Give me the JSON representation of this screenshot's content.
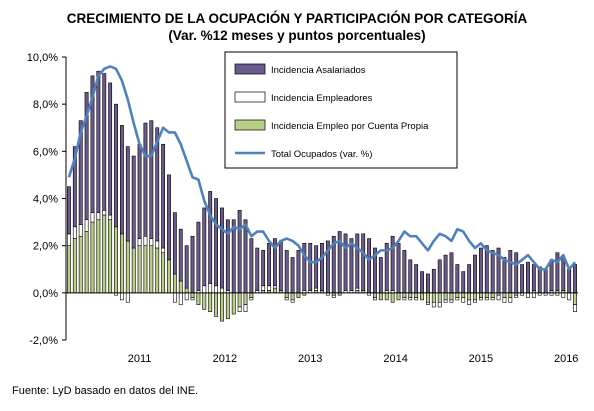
{
  "title": "CRECIMIENTO DE LA OCUPACIÓN Y PARTICIPACIÓN POR CATEGORÍA",
  "subtitle": "(Var. %12 meses  y puntos porcentuales)",
  "source": "Fuente: LyD basado en datos del INE.",
  "colors": {
    "asalariados": "#6a5a8e",
    "empleadores": "#ffffff",
    "cuenta_propia": "#b8cf86",
    "total": "#4f81bd",
    "bar_stroke": "#000000"
  },
  "chart_data": {
    "type": "bar",
    "stacked": true,
    "ylim": [
      -2,
      10
    ],
    "yticks": [
      "-2,0%",
      "0,0%",
      "2,0%",
      "4,0%",
      "6,0%",
      "8,0%",
      "10,0%"
    ],
    "year_labels": [
      "2011",
      "2012",
      "2013",
      "2014",
      "2015",
      "2016"
    ],
    "legend_position": "top-right",
    "grid": false,
    "series": [
      {
        "name": "Incidencia Asalariados",
        "kind": "bar",
        "values": [
          2.0,
          3.4,
          4.4,
          5.4,
          5.8,
          6.0,
          5.8,
          5.6,
          5.2,
          4.6,
          4.0,
          3.9,
          4.0,
          4.8,
          5.0,
          4.8,
          4.4,
          3.6,
          2.6,
          2.2,
          1.8,
          2.4,
          2.9,
          3.3,
          3.9,
          3.7,
          3.4,
          3.0,
          3.1,
          3.5,
          3.1,
          2.3,
          1.8,
          1.5,
          1.8,
          2.0,
          2.1,
          1.8,
          1.5,
          1.8,
          2.0,
          2.0,
          1.8,
          2.0,
          2.2,
          2.4,
          2.6,
          2.4,
          2.2,
          2.3,
          2.4,
          2.3,
          1.9,
          1.5,
          2.0,
          2.3,
          2.1,
          1.8,
          1.4,
          1.2,
          0.9,
          0.8,
          1.0,
          1.4,
          1.6,
          1.7,
          1.2,
          0.9,
          1.2,
          1.6,
          1.9,
          2.0,
          1.8,
          1.9,
          1.5,
          1.8,
          1.7,
          1.2,
          1.3,
          1.1,
          1.1,
          1.0,
          1.3,
          1.6,
          1.4,
          1.0,
          1.2
        ]
      },
      {
        "name": "Incidencia Empleadores",
        "kind": "bar",
        "values": [
          0.5,
          0.5,
          0.5,
          0.5,
          0.4,
          0.3,
          0.2,
          0.2,
          -0.1,
          -0.3,
          -0.4,
          0.0,
          0.3,
          0.4,
          0.3,
          0.3,
          0.2,
          0.0,
          -0.4,
          -0.5,
          -0.3,
          -0.1,
          0.1,
          0.3,
          0.4,
          0.3,
          0.2,
          0.1,
          0.0,
          -0.2,
          -0.3,
          -0.1,
          0.1,
          0.2,
          0.2,
          0.1,
          0.0,
          -0.1,
          -0.1,
          0.0,
          0.1,
          0.1,
          0.1,
          0.0,
          -0.1,
          -0.1,
          0.0,
          0.1,
          0.1,
          0.1,
          0.0,
          -0.1,
          -0.1,
          0.0,
          0.1,
          0.1,
          0.0,
          -0.1,
          -0.1,
          -0.1,
          0.0,
          -0.1,
          -0.2,
          -0.2,
          -0.1,
          -0.1,
          -0.1,
          -0.2,
          -0.2,
          -0.1,
          -0.1,
          -0.1,
          -0.1,
          -0.2,
          -0.2,
          -0.2,
          -0.1,
          -0.1,
          -0.2,
          -0.2,
          -0.1,
          -0.1,
          -0.1,
          -0.1,
          -0.2,
          -0.3,
          -0.3
        ]
      },
      {
        "name": "Incidencia Empleo por Cuenta Propia",
        "kind": "bar",
        "values": [
          2.0,
          2.3,
          2.4,
          2.6,
          3.0,
          3.1,
          3.3,
          3.1,
          2.8,
          2.5,
          2.2,
          1.9,
          2.0,
          2.0,
          2.0,
          1.9,
          1.7,
          1.4,
          0.8,
          0.5,
          0.2,
          -0.2,
          -0.5,
          -0.7,
          -0.8,
          -1.0,
          -1.2,
          -1.1,
          -0.9,
          -0.6,
          -0.5,
          -0.2,
          0.0,
          0.1,
          0.1,
          0.2,
          0.1,
          -0.2,
          -0.3,
          -0.2,
          -0.1,
          0.0,
          0.1,
          0.1,
          0.0,
          -0.1,
          -0.1,
          0.0,
          0.0,
          0.1,
          0.1,
          0.0,
          -0.2,
          -0.3,
          -0.3,
          -0.4,
          -0.3,
          -0.2,
          -0.2,
          -0.2,
          -0.3,
          -0.4,
          -0.4,
          -0.4,
          -0.3,
          -0.3,
          -0.2,
          -0.2,
          -0.3,
          -0.3,
          -0.2,
          -0.2,
          -0.2,
          -0.1,
          -0.2,
          -0.2,
          -0.1,
          0.0,
          0.0,
          0.1,
          0.0,
          0.0,
          0.1,
          0.1,
          0.1,
          0.0,
          -0.5
        ]
      },
      {
        "name": "Total Ocupados (var.  %)",
        "kind": "line",
        "values": [
          4.9,
          5.7,
          6.8,
          7.5,
          8.3,
          9.2,
          9.5,
          9.6,
          9.5,
          9.0,
          8.2,
          7.2,
          6.3,
          5.8,
          5.8,
          6.4,
          7.0,
          6.8,
          6.8,
          6.3,
          5.6,
          4.9,
          4.8,
          3.9,
          3.3,
          2.9,
          2.7,
          2.5,
          2.8,
          2.7,
          2.9,
          2.4,
          2.6,
          2.6,
          2.2,
          1.9,
          2.2,
          2.3,
          2.2,
          2.0,
          1.6,
          1.3,
          1.3,
          1.5,
          1.8,
          2.1,
          2.2,
          1.9,
          2.1,
          1.9,
          1.7,
          1.4,
          1.6,
          1.8,
          1.8,
          1.9,
          2.2,
          2.6,
          2.4,
          2.4,
          2.1,
          1.8,
          2.2,
          2.5,
          2.4,
          2.2,
          2.7,
          2.6,
          2.2,
          1.9,
          2.1,
          1.8,
          1.7,
          1.6,
          1.4,
          1.3,
          1.2,
          1.4,
          1.6,
          1.3,
          1.0,
          1.0,
          1.4,
          1.3,
          1.6,
          1.0,
          1.3
        ]
      }
    ]
  }
}
